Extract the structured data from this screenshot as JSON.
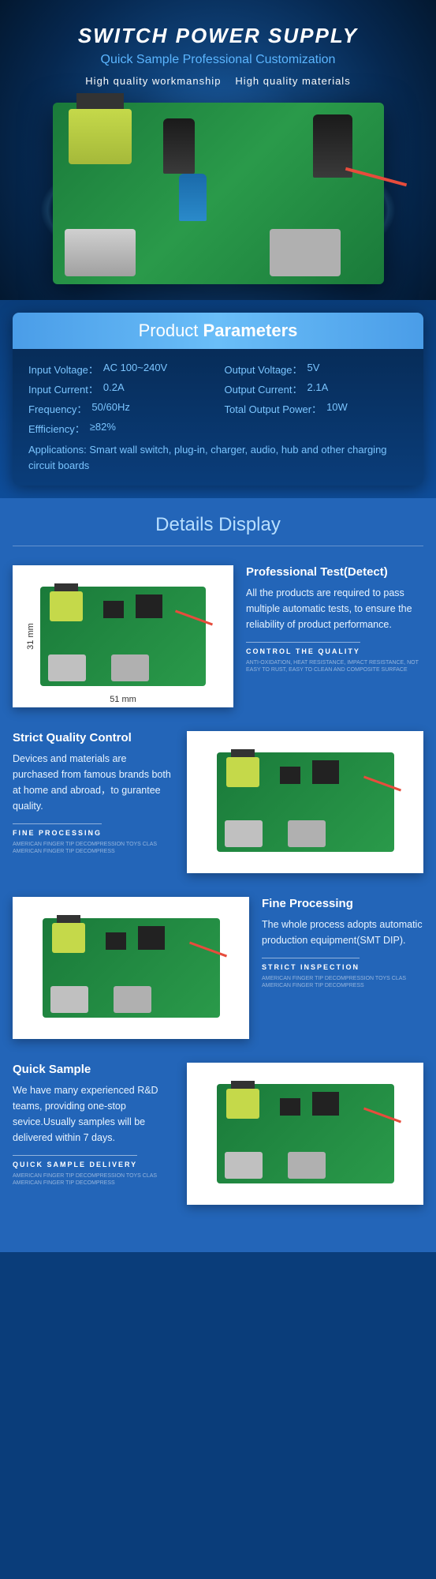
{
  "hero": {
    "title": "SWITCH POWER SUPPLY",
    "subtitle": "Quick Sample Professional Customization",
    "quality1": "High quality workmanship",
    "quality2": "High quality materials"
  },
  "params": {
    "title_thin": "Product ",
    "title_bold": "Parameters",
    "rows": [
      {
        "label": "Input Voltage：",
        "value": "AC 100~240V"
      },
      {
        "label": "Output Voltage：",
        "value": "5V"
      },
      {
        "label": "Input Current：",
        "value": "0.2A"
      },
      {
        "label": "Output Current：",
        "value": "2.1A"
      },
      {
        "label": "Frequency：",
        "value": "50/60Hz"
      },
      {
        "label": "Total Output Power：",
        "value": "10W"
      },
      {
        "label": "Effficiency：",
        "value": "≥82%"
      }
    ],
    "apps": "Applications: Smart wall switch, plug-in, charger, audio, hub and other charging circuit boards"
  },
  "details": {
    "title": "Details Display",
    "dims": {
      "h": "31 mm",
      "w": "51 mm"
    },
    "items": [
      {
        "heading": "Professional Test(Detect)",
        "body": "All the products are required to pass multiple automatic tests, to ensure the reliability of product performance.",
        "tag": "CONTROL THE QUALITY",
        "fine": "ANTI-OXIDATION, HEAT RESISTANCE, IMPACT RESISTANCE, NOT EASY TO RUST, EASY TO CLEAN AND COMPOSITE SURFACE"
      },
      {
        "heading": "Strict Quality Control",
        "body": "Devices and materials are purchased from famous brands both at home and abroad，to gurantee quality.",
        "tag": "FINE PROCESSING",
        "fine": "AMERICAN FINGER TIP DECOMPRESSION TOYS CLAS AMERICAN FINGER TIP DECOMPRESS"
      },
      {
        "heading": "Fine Processing",
        "body": "The whole process adopts automatic production equipment(SMT DIP).",
        "tag": "STRICT INSPECTION",
        "fine": "AMERICAN FINGER TIP DECOMPRESSION TOYS CLAS AMERICAN FINGER TIP DECOMPRESS"
      },
      {
        "heading": "Quick Sample",
        "body": "We have many experienced R&D teams, providing one-stop sevice.Usually samples will be delivered within 7 days.",
        "tag": "QUICK SAMPLE DELIVERY",
        "fine": "AMERICAN FINGER TIP DECOMPRESSION TOYS CLAS AMERICAN FINGER TIP DECOMPRESS"
      }
    ]
  }
}
